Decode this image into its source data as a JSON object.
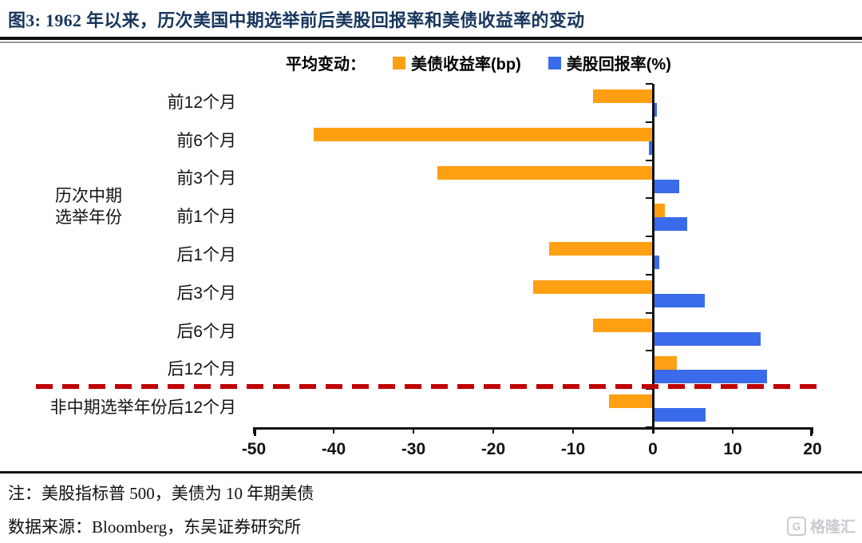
{
  "header": {
    "title": "图3:  1962 年以来，历次美国中期选举前后美股回报率和美债收益率的变动"
  },
  "legend": {
    "caption": "平均变动："
  },
  "chart_data": {
    "type": "bar",
    "orientation": "horizontal",
    "title": "1962年以来，历次美国中期选举前后美股回报率和美债收益率的变动",
    "categories": [
      "前12个月",
      "前6个月",
      "前3个月",
      "前1个月",
      "后1个月",
      "后3个月",
      "后6个月",
      "后12个月",
      "非中期选举年份后12个月"
    ],
    "series": [
      {
        "name": "美债收益率(bp)",
        "color": "#FFA013",
        "values": [
          -7.5,
          -42.5,
          -27,
          1.5,
          -13,
          -15,
          -7.5,
          3,
          -5.5
        ]
      },
      {
        "name": "美股回报率(%)",
        "color": "#3A6BEA",
        "values": [
          0.5,
          -0.5,
          3.3,
          4.3,
          0.8,
          6.5,
          13.5,
          14.3,
          6.6
        ]
      }
    ],
    "xlim": [
      -50,
      20
    ],
    "xticks": [
      -50,
      -40,
      -30,
      -20,
      -10,
      0,
      10,
      20
    ],
    "grid": false,
    "legend_position": "top",
    "group_label_lines": [
      "历次中期",
      "选举年份"
    ],
    "separator_after_index": 7,
    "separator_color": "#C00000"
  },
  "footer": {
    "note": "注：美股指标普 500，美债为 10 年期美债",
    "source": "数据来源：Bloomberg，东吴证券研究所"
  },
  "watermark": {
    "icon": "G",
    "text": "格隆汇"
  }
}
